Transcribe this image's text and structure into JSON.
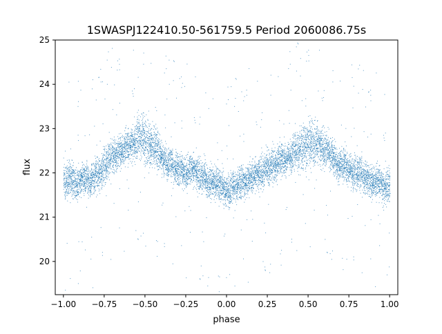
{
  "chart_data": {
    "type": "scatter",
    "title": "1SWASPJ122410.50-561759.5 Period 2060086.75s",
    "xlabel": "phase",
    "ylabel": "flux",
    "xlim": [
      -1.05,
      1.05
    ],
    "ylim": [
      19.25,
      25.0
    ],
    "xticks": [
      -1.0,
      -0.75,
      -0.5,
      -0.25,
      0.0,
      0.25,
      0.5,
      0.75,
      1.0
    ],
    "xtick_labels": [
      "−1.00",
      "−0.75",
      "−0.50",
      "−0.25",
      "0.00",
      "0.25",
      "0.50",
      "0.75",
      "1.00"
    ],
    "yticks": [
      20,
      21,
      22,
      23,
      24,
      25
    ],
    "ytick_labels": [
      "20",
      "21",
      "22",
      "23",
      "24",
      "25"
    ],
    "grid": false,
    "legend": "none",
    "marker_color": "#1f77b4",
    "series": [
      {
        "x": [
          -1.0,
          -0.98,
          -0.96,
          -0.94,
          -0.92,
          -0.9,
          -0.88,
          -0.86,
          -0.84,
          -0.82,
          -0.8,
          -0.78,
          -0.76,
          -0.74,
          -0.72,
          -0.7,
          -0.68,
          -0.66,
          -0.64,
          -0.62,
          -0.6,
          -0.58,
          -0.56,
          -0.54,
          -0.52,
          -0.5,
          -0.48,
          -0.46,
          -0.44,
          -0.42,
          -0.4,
          -0.38,
          -0.36,
          -0.34,
          -0.32,
          -0.3,
          -0.28,
          -0.26,
          -0.24,
          -0.22,
          -0.2,
          -0.18,
          -0.16,
          -0.14,
          -0.12,
          -0.1,
          -0.08,
          -0.06,
          -0.04,
          -0.02,
          0.0,
          0.02,
          0.04,
          0.06,
          0.08,
          0.1,
          0.12,
          0.14,
          0.16,
          0.18,
          0.2,
          0.22,
          0.24,
          0.26,
          0.28,
          0.3,
          0.32,
          0.34,
          0.36,
          0.38,
          0.4,
          0.42,
          0.44,
          0.46,
          0.48,
          0.5,
          0.52,
          0.54,
          0.56,
          0.58,
          0.6,
          0.62,
          0.64,
          0.66,
          0.68,
          0.7,
          0.72,
          0.74,
          0.76,
          0.78,
          0.8,
          0.82,
          0.84,
          0.86,
          0.88,
          0.9,
          0.92,
          0.94,
          0.96,
          0.98,
          1.0
        ],
        "y": [
          21.8,
          21.8,
          21.9,
          21.8,
          21.7,
          21.8,
          21.9,
          21.9,
          21.8,
          21.9,
          22.0,
          22.0,
          22.1,
          22.2,
          22.3,
          22.4,
          22.4,
          22.5,
          22.5,
          22.6,
          22.6,
          22.7,
          22.7,
          22.8,
          22.8,
          22.7,
          22.7,
          22.6,
          22.6,
          22.5,
          22.4,
          22.3,
          22.2,
          22.2,
          22.1,
          22.1,
          22.1,
          22.0,
          22.0,
          22.1,
          22.1,
          22.0,
          21.9,
          21.9,
          21.8,
          21.8,
          21.8,
          21.8,
          21.7,
          21.7,
          21.6,
          21.6,
          21.7,
          21.7,
          21.8,
          21.8,
          21.8,
          21.9,
          21.9,
          22.0,
          22.0,
          22.0,
          22.1,
          22.1,
          22.2,
          22.2,
          22.3,
          22.3,
          22.3,
          22.4,
          22.4,
          22.5,
          22.5,
          22.6,
          22.6,
          22.7,
          22.7,
          22.6,
          22.7,
          22.6,
          22.5,
          22.5,
          22.4,
          22.3,
          22.2,
          22.2,
          22.2,
          22.1,
          22.1,
          22.0,
          22.0,
          22.0,
          21.9,
          21.9,
          21.8,
          21.8,
          21.8,
          21.8,
          21.7,
          21.7,
          21.7
        ],
        "spread": [
          0.55,
          0.55,
          0.55,
          0.55,
          0.5,
          0.5,
          0.5,
          0.5,
          0.5,
          0.5,
          0.55,
          0.55,
          0.6,
          0.6,
          0.55,
          0.55,
          0.5,
          0.5,
          0.5,
          0.5,
          0.55,
          0.55,
          0.6,
          0.65,
          0.7,
          0.75,
          0.75,
          0.7,
          0.65,
          0.6,
          0.55,
          0.5,
          0.5,
          0.5,
          0.5,
          0.5,
          0.5,
          0.5,
          0.5,
          0.5,
          0.5,
          0.5,
          0.5,
          0.5,
          0.5,
          0.5,
          0.5,
          0.5,
          0.5,
          0.55,
          0.55,
          0.55,
          0.5,
          0.5,
          0.5,
          0.5,
          0.5,
          0.5,
          0.5,
          0.5,
          0.5,
          0.5,
          0.5,
          0.55,
          0.55,
          0.55,
          0.5,
          0.5,
          0.5,
          0.5,
          0.55,
          0.6,
          0.65,
          0.7,
          0.75,
          0.75,
          0.75,
          0.7,
          0.65,
          0.6,
          0.55,
          0.5,
          0.5,
          0.5,
          0.5,
          0.5,
          0.5,
          0.5,
          0.55,
          0.55,
          0.55,
          0.55,
          0.5,
          0.5,
          0.5,
          0.5,
          0.5,
          0.5,
          0.55,
          0.55,
          0.55
        ],
        "points_per_bin": 90
      }
    ]
  }
}
